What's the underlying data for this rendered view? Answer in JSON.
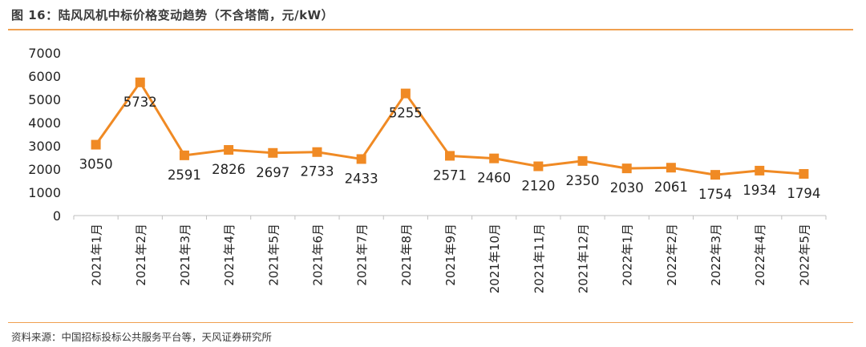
{
  "figure": {
    "title": "图 16：陆风风机中标价格变动趋势（不含塔筒，元/kW）",
    "source": "资料来源：中国招标投标公共服务平台等，天风证券研究所"
  },
  "chart_data": {
    "type": "line",
    "title": "",
    "xlabel": "",
    "ylabel": "",
    "categories": [
      "2021年1月",
      "2021年2月",
      "2021年3月",
      "2021年4月",
      "2021年5月",
      "2021年6月",
      "2021年7月",
      "2021年8月",
      "2021年9月",
      "2021年10月",
      "2021年11月",
      "2021年12月",
      "2022年1月",
      "2022年2月",
      "2022年3月",
      "2022年4月",
      "2022年5月"
    ],
    "series": [
      {
        "values": [
          3050,
          5732,
          2591,
          2826,
          2697,
          2733,
          2433,
          5255,
          2571,
          2460,
          2120,
          2350,
          2030,
          2061,
          1754,
          1934,
          1794
        ],
        "color": "#f08a24",
        "marker": "square"
      }
    ],
    "ylim": [
      0,
      7000
    ],
    "yticks": [
      0,
      1000,
      2000,
      3000,
      4000,
      5000,
      6000,
      7000
    ],
    "data_labels": true,
    "grid": false,
    "legend": "none",
    "label_positions": [
      "below",
      "below",
      "below",
      "below",
      "below",
      "below",
      "below",
      "below",
      "below",
      "below",
      "below",
      "below",
      "below",
      "below",
      "below",
      "below",
      "below"
    ]
  }
}
